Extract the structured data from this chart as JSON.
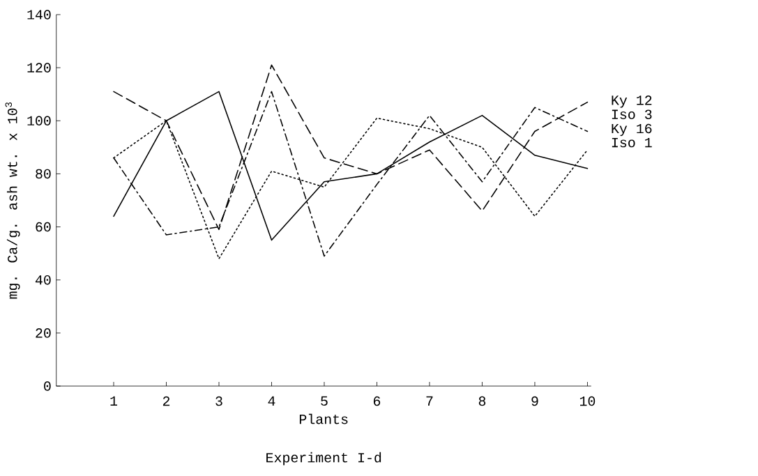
{
  "chart_data": {
    "type": "line",
    "xlabel": "Plants",
    "ylabel": "mg. Ca/g. ash wt. x 10$^{3}$",
    "annotations": [
      "Experiment I-d"
    ],
    "categories": [
      "1",
      "2",
      "3",
      "4",
      "5",
      "6",
      "7",
      "8",
      "9",
      "10"
    ],
    "series": [
      {
        "name": "Ky 12",
        "color": "#000000",
        "line_style": "dashed",
        "values": [
          111,
          100,
          59,
          121,
          86,
          80,
          89,
          66,
          96,
          107
        ]
      },
      {
        "name": "Iso 3",
        "color": "#000000",
        "line_style": "dashdot",
        "values": [
          86,
          57,
          60,
          111,
          49,
          76,
          102,
          77,
          105,
          96
        ]
      },
      {
        "name": "Ky 16",
        "color": "#000000",
        "line_style": "dotted",
        "values": [
          86,
          100,
          48,
          81,
          75,
          101,
          97,
          90,
          64,
          89
        ]
      },
      {
        "name": "Iso 1",
        "color": "#000000",
        "line_style": "solid",
        "values": [
          64,
          100,
          111,
          55,
          77,
          80,
          92,
          102,
          87,
          82
        ]
      }
    ],
    "ylim": [
      0,
      140
    ],
    "yticks": [
      0,
      20,
      40,
      60,
      80,
      100,
      120,
      140
    ],
    "grid": false,
    "legend": "right",
    "marker": "none"
  }
}
